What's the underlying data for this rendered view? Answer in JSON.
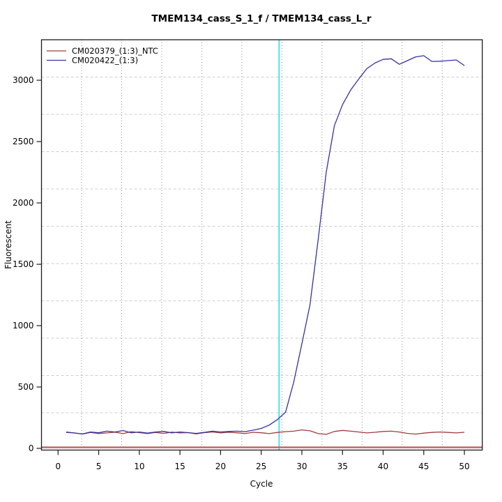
{
  "title": "TMEM134_cass_S_1_f / TMEM134_cass_L_r",
  "chart_data": {
    "type": "line",
    "title": "TMEM134_cass_S_1_f / TMEM134_cass_L_r",
    "xlabel": "Cycle",
    "ylabel": "Fluorescent",
    "xlim": [
      -2.04,
      52.2
    ],
    "ylim": [
      -14,
      3330
    ],
    "xticks": [
      0,
      5,
      10,
      15,
      20,
      25,
      30,
      35,
      40,
      45,
      50
    ],
    "yticks": [
      0,
      500,
      1000,
      1500,
      2000,
      2500,
      3000
    ],
    "grid": {
      "nx": 11,
      "ny": 11,
      "v_style": "dotted",
      "h_style": "dashed",
      "v_color": "#8f8f8f",
      "h_color": "#cfcfcf"
    },
    "legend_position": "top-left",
    "ct_vline": {
      "x": 27.2,
      "color": "#3fe0e6"
    },
    "baseline_hline": {
      "y": 8,
      "color": "#c06868"
    },
    "cycles": [
      1,
      2,
      3,
      4,
      5,
      6,
      7,
      8,
      9,
      10,
      11,
      12,
      13,
      14,
      15,
      16,
      17,
      18,
      19,
      20,
      21,
      22,
      23,
      24,
      25,
      26,
      27,
      28,
      29,
      30,
      31,
      32,
      33,
      34,
      35,
      36,
      37,
      38,
      39,
      40,
      41,
      42,
      43,
      44,
      45,
      46,
      47,
      48,
      49,
      50
    ],
    "series": [
      {
        "name": "CM020379_(1:3)_NTC",
        "color": "#a03c3c",
        "values": [
          130,
          126,
          116,
          130,
          120,
          126,
          132,
          120,
          136,
          128,
          120,
          130,
          122,
          132,
          126,
          128,
          118,
          128,
          133,
          126,
          131,
          127,
          120,
          131,
          127,
          120,
          130,
          136,
          140,
          150,
          143,
          120,
          114,
          138,
          146,
          140,
          133,
          126,
          131,
          138,
          140,
          133,
          122,
          116,
          124,
          130,
          133,
          130,
          126,
          131
        ]
      },
      {
        "name": "CM020422_(1:3)",
        "color": "#3232a2",
        "values": [
          133,
          125,
          117,
          133,
          127,
          140,
          133,
          145,
          127,
          133,
          124,
          133,
          138,
          126,
          133,
          128,
          122,
          130,
          140,
          133,
          138,
          140,
          136,
          148,
          162,
          190,
          235,
          295,
          540,
          850,
          1170,
          1700,
          2250,
          2630,
          2800,
          2920,
          3010,
          3095,
          3140,
          3170,
          3175,
          3130,
          3160,
          3190,
          3200,
          3153,
          3155,
          3160,
          3165,
          3120
        ]
      }
    ]
  }
}
